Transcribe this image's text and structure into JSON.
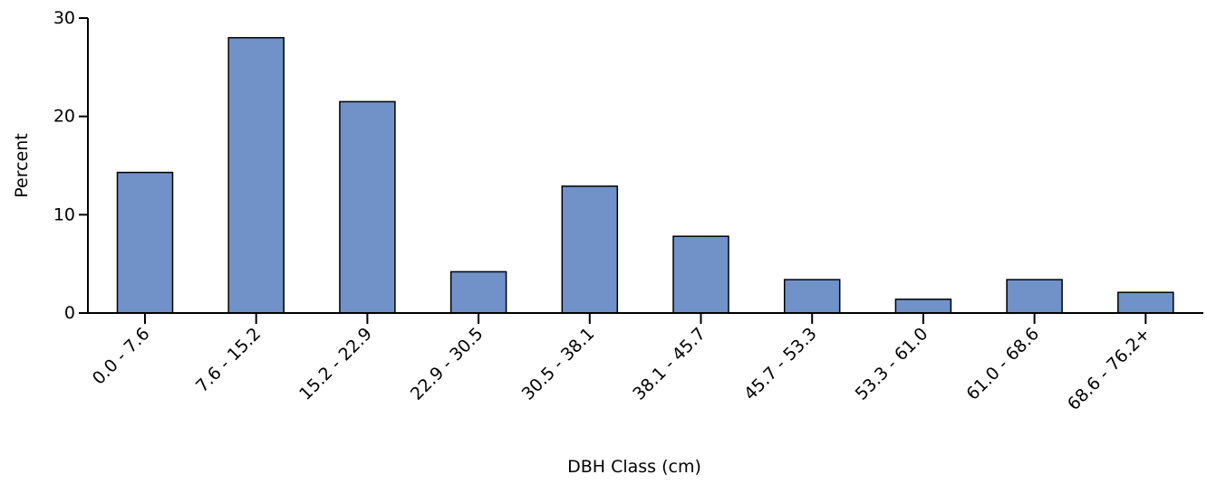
{
  "chart_data": {
    "type": "bar",
    "title": "",
    "xlabel": "DBH Class (cm)",
    "ylabel": "Percent",
    "categories": [
      "0.0 - 7.6",
      "7.6 - 15.2",
      "15.2 - 22.9",
      "22.9 - 30.5",
      "30.5 - 38.1",
      "38.1 - 45.7",
      "45.7 - 53.3",
      "53.3 - 61.0",
      "61.0 - 68.6",
      "68.6 - 76.2+"
    ],
    "values": [
      14.3,
      28.0,
      21.5,
      4.2,
      12.9,
      7.8,
      3.4,
      1.4,
      3.4,
      2.1
    ],
    "ylim": [
      0,
      30
    ],
    "yticks": [
      0,
      10,
      20,
      30
    ],
    "grid": false,
    "legend": "none",
    "bar_color": "#7092c9"
  }
}
